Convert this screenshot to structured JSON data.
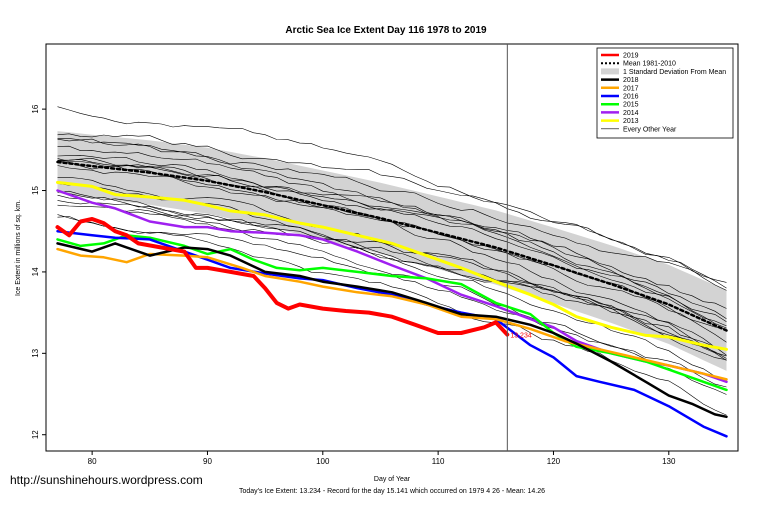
{
  "chart_data": {
    "type": "line",
    "title": "Arctic Sea Ice Extent Day 116 1978 to 2019",
    "xlabel": "Day of Year",
    "ylabel": "Ice Extent in millions of sq. km.",
    "xlim": [
      76,
      136
    ],
    "ylim": [
      11.8,
      16.8
    ],
    "x_ticks": [
      80,
      90,
      100,
      110,
      120,
      130
    ],
    "y_ticks": [
      12,
      13,
      14,
      15,
      16
    ],
    "current_day": 116,
    "current_value_label": "13.234",
    "footer": "Today's Ice Extent: 13.234  - Record for the day  15.141 which occurred on 1979 4 26  - Mean: 14.26",
    "watermark": "http://sunshinehours.wordpress.com",
    "legend_position": "top-right",
    "legend": [
      {
        "label": "2019",
        "color": "#ff0000"
      },
      {
        "label": "Mean 1981-2010",
        "color": "#000000"
      },
      {
        "label": "1 Standard Deviation From Mean",
        "color": "#d3d3d3"
      },
      {
        "label": "2018",
        "color": "#000000"
      },
      {
        "label": "2017",
        "color": "#ffa500"
      },
      {
        "label": "2016",
        "color": "#0000ff"
      },
      {
        "label": "2015",
        "color": "#00ff00"
      },
      {
        "label": "2014",
        "color": "#a020f0"
      },
      {
        "label": "2013",
        "color": "#ffff00"
      },
      {
        "label": "Every Other Year",
        "color": "#000000"
      }
    ],
    "series": [
      {
        "name": "2019",
        "color": "#ff0000",
        "width": 4,
        "x": [
          77,
          78,
          79,
          80,
          81,
          82,
          83,
          84,
          86,
          88,
          89,
          90,
          92,
          94,
          95,
          96,
          97,
          98,
          100,
          102,
          104,
          106,
          108,
          110,
          112,
          114,
          115,
          116
        ],
        "y": [
          14.55,
          14.45,
          14.62,
          14.65,
          14.6,
          14.5,
          14.45,
          14.35,
          14.3,
          14.25,
          14.05,
          14.05,
          14.0,
          13.95,
          13.8,
          13.62,
          13.55,
          13.6,
          13.55,
          13.52,
          13.5,
          13.45,
          13.35,
          13.25,
          13.25,
          13.32,
          13.38,
          13.23
        ]
      },
      {
        "name": "Mean 1981-2010",
        "color": "#000000",
        "width": 2.5,
        "dash": "3,3",
        "x": [
          77,
          80,
          85,
          90,
          95,
          100,
          105,
          110,
          115,
          120,
          125,
          130,
          135
        ],
        "y": [
          15.35,
          15.3,
          15.22,
          15.12,
          14.98,
          14.82,
          14.66,
          14.48,
          14.3,
          14.08,
          13.85,
          13.6,
          13.28
        ]
      },
      {
        "name": "2018",
        "color": "#000000",
        "width": 2.5,
        "x": [
          77,
          80,
          82,
          85,
          88,
          90,
          92,
          95,
          98,
          100,
          103,
          106,
          109,
          112,
          115,
          118,
          120,
          122,
          125,
          128,
          130,
          132,
          134,
          135
        ],
        "y": [
          14.35,
          14.25,
          14.35,
          14.2,
          14.3,
          14.28,
          14.2,
          14.0,
          13.95,
          13.88,
          13.82,
          13.75,
          13.62,
          13.48,
          13.45,
          13.35,
          13.25,
          13.12,
          12.9,
          12.65,
          12.48,
          12.38,
          12.25,
          12.22
        ]
      },
      {
        "name": "2017",
        "color": "#ffa500",
        "width": 2.5,
        "x": [
          77,
          79,
          81,
          83,
          85,
          88,
          90,
          93,
          95,
          98,
          100,
          103,
          106,
          109,
          112,
          115,
          118,
          121,
          124,
          127,
          130,
          133,
          135
        ],
        "y": [
          14.28,
          14.2,
          14.18,
          14.12,
          14.22,
          14.2,
          14.18,
          14.05,
          13.95,
          13.88,
          13.82,
          13.75,
          13.7,
          13.6,
          13.45,
          13.42,
          13.3,
          13.15,
          13.05,
          12.95,
          12.85,
          12.75,
          12.68
        ]
      },
      {
        "name": "2016",
        "color": "#0000ff",
        "width": 2.5,
        "x": [
          77,
          80,
          82,
          85,
          88,
          90,
          92,
          95,
          98,
          100,
          103,
          106,
          109,
          112,
          115,
          118,
          120,
          122,
          124,
          127,
          130,
          133,
          135
        ],
        "y": [
          14.5,
          14.45,
          14.42,
          14.4,
          14.25,
          14.15,
          14.05,
          13.98,
          13.92,
          13.9,
          13.8,
          13.72,
          13.6,
          13.5,
          13.42,
          13.1,
          12.95,
          12.72,
          12.65,
          12.55,
          12.35,
          12.1,
          11.98
        ]
      },
      {
        "name": "2015",
        "color": "#00ff00",
        "width": 2.5,
        "x": [
          77,
          79,
          81,
          83,
          85,
          88,
          90,
          92,
          94,
          96,
          98,
          100,
          103,
          106,
          109,
          112,
          115,
          118,
          120,
          122,
          125,
          128,
          130,
          133,
          135
        ],
        "y": [
          14.4,
          14.32,
          14.35,
          14.45,
          14.42,
          14.32,
          14.22,
          14.28,
          14.15,
          14.05,
          14.02,
          14.05,
          14.0,
          13.95,
          13.92,
          13.85,
          13.62,
          13.48,
          13.25,
          13.08,
          13.0,
          12.9,
          12.8,
          12.65,
          12.55
        ]
      },
      {
        "name": "2014",
        "color": "#a020f0",
        "width": 2.5,
        "x": [
          77,
          80,
          82,
          85,
          88,
          90,
          92,
          95,
          98,
          100,
          103,
          106,
          109,
          112,
          115,
          118,
          120,
          122,
          125,
          128,
          130,
          133,
          135
        ],
        "y": [
          15.0,
          14.85,
          14.78,
          14.62,
          14.55,
          14.55,
          14.5,
          14.48,
          14.45,
          14.4,
          14.25,
          14.08,
          13.92,
          13.72,
          13.58,
          13.42,
          13.32,
          13.15,
          13.0,
          12.9,
          12.85,
          12.75,
          12.65
        ]
      },
      {
        "name": "2013",
        "color": "#ffff00",
        "width": 3,
        "x": [
          77,
          80,
          82,
          85,
          88,
          90,
          92,
          95,
          98,
          100,
          103,
          106,
          109,
          112,
          115,
          118,
          120,
          122,
          125,
          128,
          130,
          133,
          135
        ],
        "y": [
          15.1,
          15.05,
          14.95,
          14.92,
          14.88,
          14.82,
          14.75,
          14.7,
          14.6,
          14.55,
          14.45,
          14.35,
          14.2,
          14.05,
          13.88,
          13.72,
          13.6,
          13.45,
          13.32,
          13.22,
          13.2,
          13.1,
          13.05
        ]
      }
    ]
  }
}
